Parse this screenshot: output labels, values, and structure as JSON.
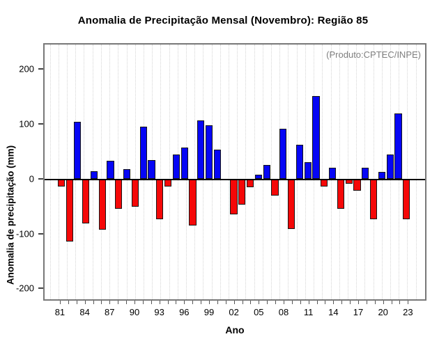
{
  "title": "Anomalia de Precipitação Mensal (Novembro): Região 85",
  "annotation": "(Produto:CPTEC/INPE)",
  "chart_data": {
    "type": "bar",
    "title": "Anomalia de Precipitação Mensal (Novembro): Região 85",
    "xlabel": "Ano",
    "ylabel": "Anomalia de precipitação (mm)",
    "x": [
      1981,
      1982,
      1983,
      1984,
      1985,
      1986,
      1987,
      1988,
      1989,
      1990,
      1991,
      1992,
      1993,
      1994,
      1995,
      1996,
      1997,
      1998,
      1999,
      2000,
      2001,
      2002,
      2003,
      2004,
      2005,
      2006,
      2007,
      2008,
      2009,
      2010,
      2011,
      2012,
      2013,
      2014,
      2015,
      2016,
      2017,
      2018,
      2019,
      2020,
      2021,
      2022,
      2023
    ],
    "values": [
      -15,
      -116,
      105,
      -83,
      14,
      -94,
      33,
      -55,
      17,
      -52,
      96,
      34,
      -75,
      -14,
      44,
      58,
      -86,
      107,
      98,
      53,
      -2,
      -66,
      -48,
      -16,
      8,
      25,
      -31,
      92,
      -93,
      63,
      31,
      152,
      -14,
      20,
      -56,
      -9,
      -22,
      20,
      -75,
      12,
      44,
      120,
      -75
    ],
    "x_tick_labels": [
      "81",
      "84",
      "87",
      "90",
      "93",
      "96",
      "99",
      "02",
      "05",
      "08",
      "11",
      "14",
      "17",
      "20",
      "23"
    ],
    "x_tick_every": 3,
    "y_ticks": [
      200,
      100,
      0,
      -100,
      -200
    ],
    "ylim": [
      -222.5,
      247.5
    ],
    "grid": "vertical-dotted",
    "legend": "none",
    "colors": {
      "positive_bar": "#0000ff",
      "negative_bar": "#ff0000",
      "bar_border": "#151515",
      "gridline": "#d4d4d4",
      "annotation_text": "#808080"
    }
  }
}
